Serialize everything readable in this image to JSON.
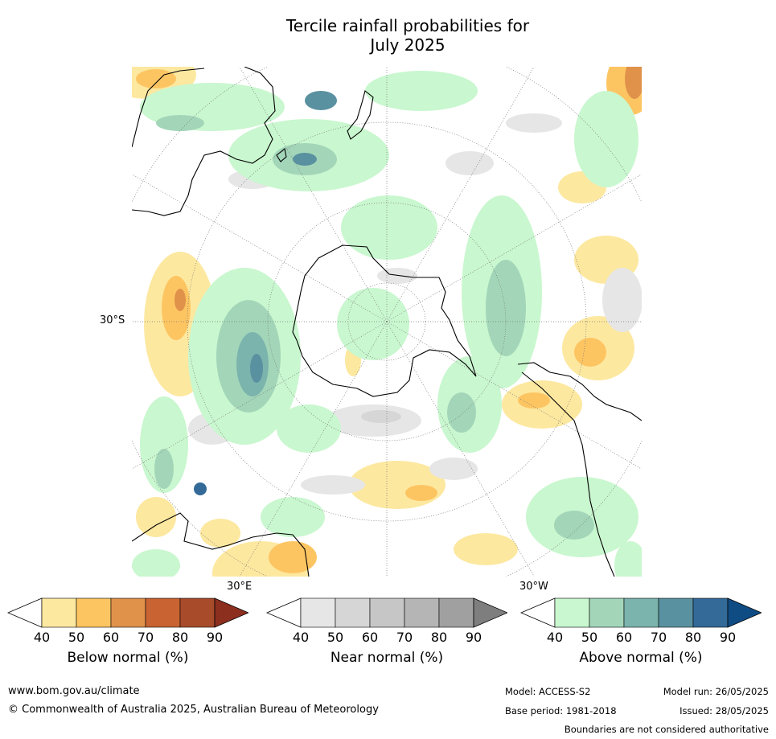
{
  "title_line1": "Tercile rainfall probabilities for",
  "title_line2": "July 2025",
  "map": {
    "labels": [
      "30°S",
      "30°E",
      "30°W"
    ],
    "colors": {
      "ocean": "#ffffff",
      "coast": "#000000",
      "gridline": "#777777"
    }
  },
  "colorbars": [
    {
      "label": "Below normal (%)",
      "ticks": [
        "40",
        "50",
        "60",
        "70",
        "80",
        "90"
      ],
      "colors": [
        "#ffffff",
        "#fde8a0",
        "#fdc562",
        "#e0924a",
        "#c96332",
        "#a84b2a",
        "#8c2f1f"
      ]
    },
    {
      "label": "Near normal (%)",
      "ticks": [
        "40",
        "50",
        "60",
        "70",
        "80",
        "90"
      ],
      "colors": [
        "#ffffff",
        "#e6e6e6",
        "#d6d6d6",
        "#c6c6c6",
        "#b5b5b5",
        "#a0a0a0",
        "#7e7e7e"
      ]
    },
    {
      "label": "Above normal (%)",
      "ticks": [
        "40",
        "50",
        "60",
        "70",
        "80",
        "90"
      ],
      "colors": [
        "#ffffff",
        "#c9f7cf",
        "#a3d6b9",
        "#7bb3ad",
        "#5a91a0",
        "#336a98",
        "#104c84"
      ]
    }
  ],
  "footer": {
    "website": "www.bom.gov.au/climate",
    "copyright": "© Commonwealth of Australia 2025, Australian Bureau of Meteorology",
    "model": "Model: ACCESS-S2",
    "base_period": "Base period: 1981-2018",
    "model_run": "Model run: 26/05/2025",
    "issued": "Issued: 28/05/2025",
    "disclaimer": "Boundaries are not considered authoritative"
  }
}
